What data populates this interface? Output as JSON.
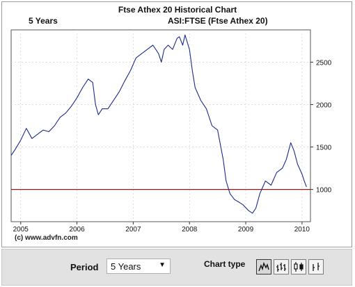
{
  "header": {
    "title": "Ftse Athex 20 Historical Chart",
    "period": "5 Years",
    "symbol": "ASI:FTSE (Ftse Athex 20)"
  },
  "footer": {
    "copyright": "(c) www.advfn.com"
  },
  "controls": {
    "period_label": "Period",
    "period_value": "5 Years",
    "chart_type_label": "Chart type",
    "chart_type_icons": [
      "line-chart-icon",
      "ohlc-bar-icon",
      "candlestick-icon",
      "hlc-icon"
    ]
  },
  "colors": {
    "line": "#1a2a8c",
    "reference": "#8b1a1a",
    "grid": "#c8c8c8",
    "panel": "#e2e2e2"
  },
  "chart_data": {
    "type": "line",
    "title": "Ftse Athex 20 Historical Chart",
    "series": [
      {
        "x": [
          2004.83,
          2004.9,
          2005.0,
          2005.1,
          2005.2,
          2005.3,
          2005.4,
          2005.5,
          2005.6,
          2005.7,
          2005.8,
          2005.9,
          2006.0,
          2006.1,
          2006.2,
          2006.28,
          2006.33,
          2006.38,
          2006.45,
          2006.55,
          2006.65,
          2006.75,
          2006.85,
          2006.95,
          2007.05,
          2007.15,
          2007.25,
          2007.35,
          2007.45,
          2007.5,
          2007.55,
          2007.62,
          2007.7,
          2007.78,
          2007.82,
          2007.88,
          2007.92,
          2008.0,
          2008.05,
          2008.1,
          2008.2,
          2008.3,
          2008.4,
          2008.5,
          2008.6,
          2008.65,
          2008.72,
          2008.8,
          2008.88,
          2008.95,
          2009.05,
          2009.12,
          2009.18,
          2009.25,
          2009.35,
          2009.45,
          2009.55,
          2009.65,
          2009.72,
          2009.8,
          2009.86,
          2009.92,
          2010.0,
          2010.04,
          2010.08
        ],
        "y": [
          1400,
          1470,
          1580,
          1720,
          1600,
          1650,
          1700,
          1680,
          1750,
          1850,
          1900,
          1980,
          2080,
          2200,
          2300,
          2260,
          2000,
          1880,
          1950,
          1950,
          2050,
          2150,
          2280,
          2400,
          2550,
          2600,
          2650,
          2700,
          2600,
          2500,
          2650,
          2700,
          2650,
          2780,
          2800,
          2700,
          2820,
          2650,
          2400,
          2200,
          2050,
          1950,
          1750,
          1700,
          1350,
          1100,
          950,
          880,
          850,
          820,
          750,
          720,
          780,
          950,
          1100,
          1050,
          1200,
          1250,
          1350,
          1550,
          1450,
          1300,
          1180,
          1100,
          1030
        ]
      }
    ],
    "x_ticks": [
      "2005",
      "2006",
      "2007",
      "2008",
      "2009",
      "2010"
    ],
    "y_ticks": [
      "1000",
      "1500",
      "2000",
      "2500"
    ],
    "xlim": [
      2004.83,
      2010.15
    ],
    "ylim": [
      620,
      2880
    ],
    "reference_line": 1000,
    "grid": true
  }
}
